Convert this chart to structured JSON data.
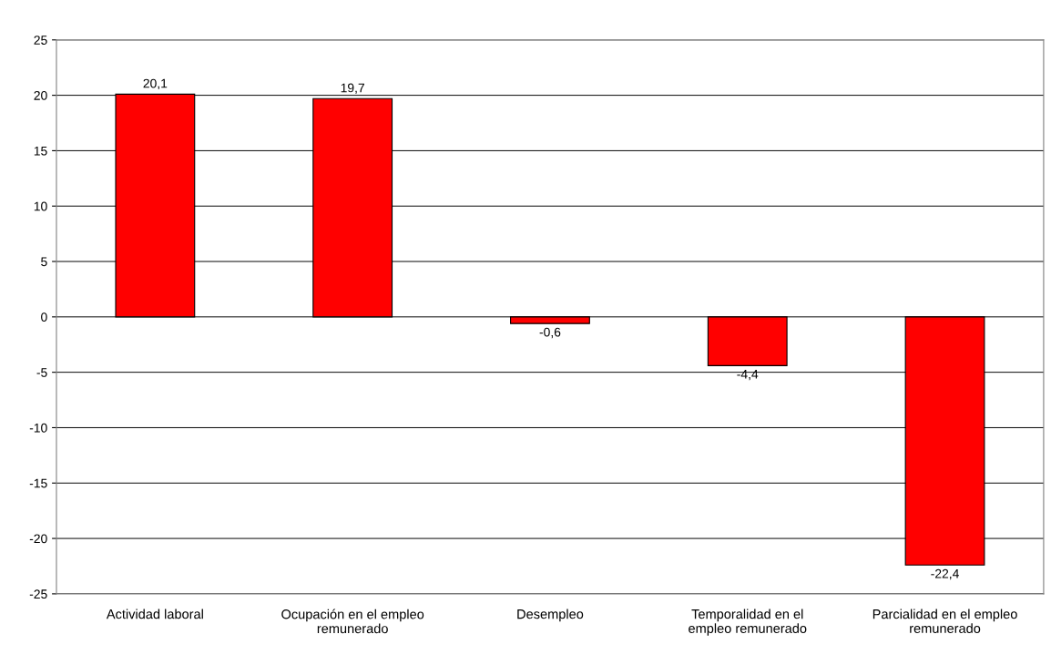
{
  "chart_data": {
    "type": "bar",
    "categories": [
      "Actividad laboral",
      "Ocupación en el empleo\nremunerado",
      "Desempleo",
      "Temporalidad en el\nempleo remunerado",
      "Parcialidad en el empleo\nremunerado"
    ],
    "values": [
      20.1,
      19.7,
      -0.6,
      -4.4,
      -22.4
    ],
    "value_labels": [
      "20,1",
      "19,7",
      "-0,6",
      "-4,4",
      "-22,4"
    ],
    "color": "#ff0000",
    "ylim": [
      -25,
      25
    ],
    "yticks": [
      -25,
      -20,
      -15,
      -10,
      -5,
      0,
      5,
      10,
      15,
      20,
      25
    ],
    "grid": "y",
    "legend": false
  }
}
